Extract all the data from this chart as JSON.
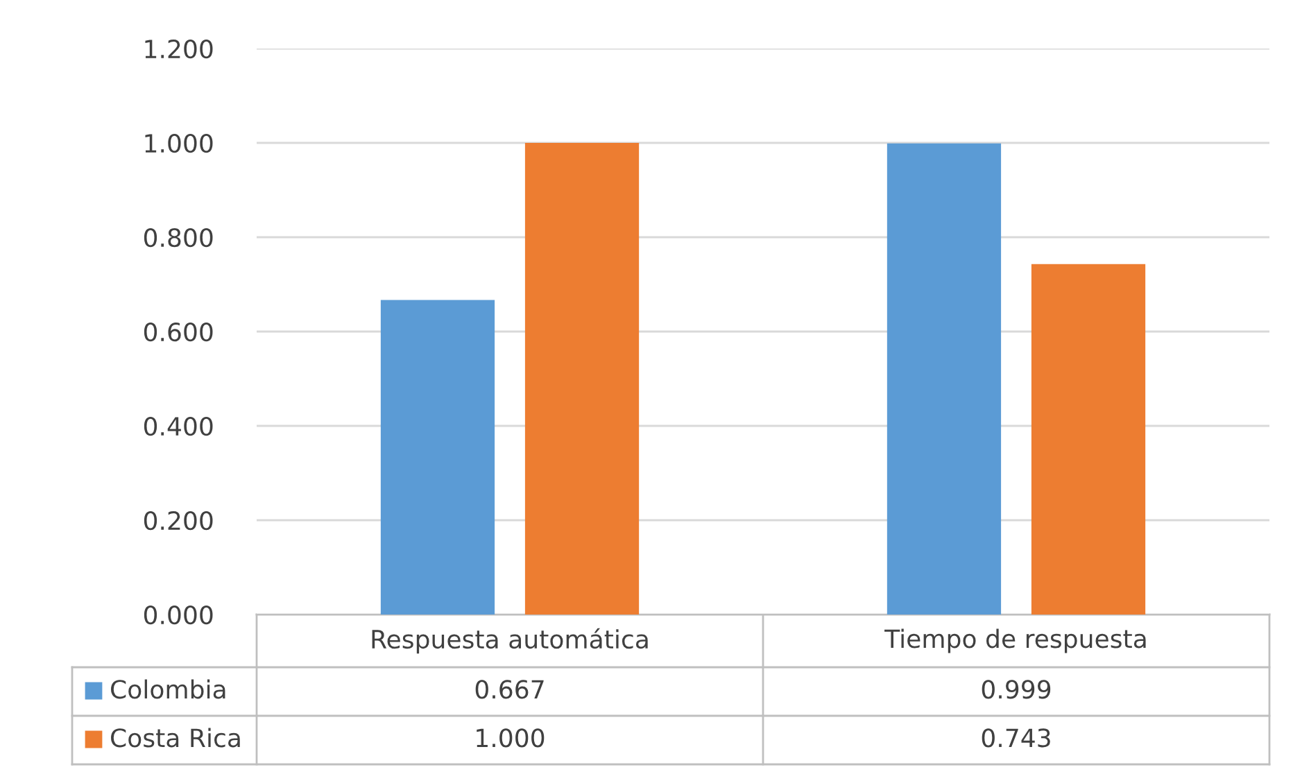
{
  "chart_data": {
    "type": "bar",
    "categories": [
      "Respuesta automática",
      "Tiempo de respuesta"
    ],
    "series": [
      {
        "name": "Colombia",
        "color": "#5b9bd5",
        "values": [
          0.667,
          0.999
        ]
      },
      {
        "name": "Costa Rica",
        "color": "#ed7d31",
        "values": [
          1.0,
          0.743
        ]
      }
    ],
    "ylim": [
      0,
      1.2
    ],
    "yticks": [
      {
        "value": 0,
        "label": "0.000"
      },
      {
        "value": 0.2,
        "label": "0.200"
      },
      {
        "value": 0.4,
        "label": "0.400"
      },
      {
        "value": 0.6,
        "label": "0.600"
      },
      {
        "value": 0.8,
        "label": "0.800"
      },
      {
        "value": 1.0,
        "label": "1.000"
      },
      {
        "value": 1.2,
        "label": "1.200"
      }
    ],
    "value_labels": [
      [
        "0.667",
        "0.999"
      ],
      [
        "1.000",
        "0.743"
      ]
    ],
    "grid": "y",
    "legend": "bottom"
  }
}
